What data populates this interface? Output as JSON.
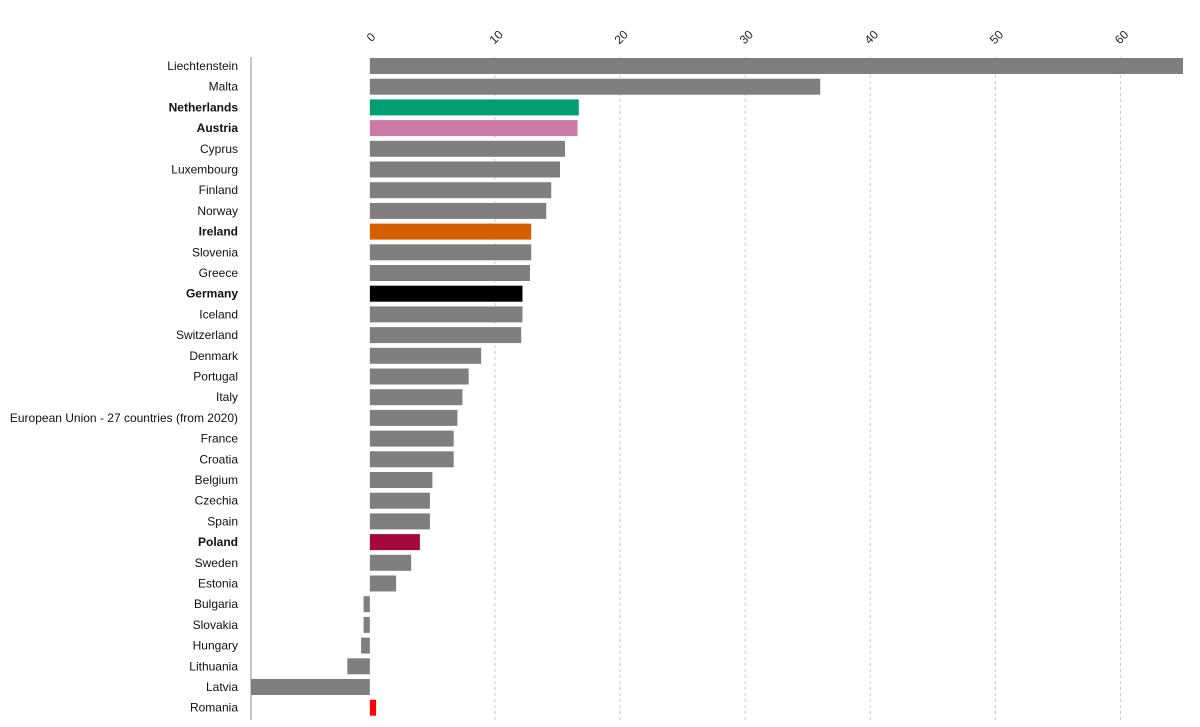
{
  "chart_data": {
    "type": "bar",
    "orientation": "horizontal",
    "title": "",
    "xlabel": "",
    "ylabel": "",
    "xlim": [
      -9.5,
      65
    ],
    "x_ticks": [
      0,
      10,
      20,
      30,
      40,
      50,
      60
    ],
    "grid": true,
    "categories": [
      "Liechtenstein",
      "Malta",
      "Netherlands",
      "Austria",
      "Cyprus",
      "Luxembourg",
      "Finland",
      "Norway",
      "Ireland",
      "Slovenia",
      "Greece",
      "Germany",
      "Iceland",
      "Switzerland",
      "Denmark",
      "Portugal",
      "Italy",
      "European Union - 27 countries (from 2020)",
      "France",
      "Croatia",
      "Belgium",
      "Czechia",
      "Spain",
      "Poland",
      "Sweden",
      "Estonia",
      "Bulgaria",
      "Slovakia",
      "Hungary",
      "Lithuania",
      "Latvia",
      "Romania"
    ],
    "values": [
      65.0,
      36.0,
      16.7,
      16.6,
      15.6,
      15.2,
      14.5,
      14.1,
      12.9,
      12.9,
      12.8,
      12.2,
      12.2,
      12.1,
      8.9,
      7.9,
      7.4,
      7.0,
      6.7,
      6.7,
      5.0,
      4.8,
      4.8,
      4.0,
      3.3,
      2.1,
      -0.5,
      -0.5,
      -0.7,
      -1.8,
      -9.5,
      0.5
    ],
    "bold_categories": [
      "Netherlands",
      "Austria",
      "Ireland",
      "Germany",
      "Poland"
    ],
    "highlight_colors": {
      "Netherlands": "#009e73",
      "Austria": "#cc79a7",
      "Ireland": "#d55e00",
      "Germany": "#000000",
      "Poland": "#a5093b",
      "Romania": "#ff0000"
    },
    "default_color": "#7f7f7f"
  }
}
